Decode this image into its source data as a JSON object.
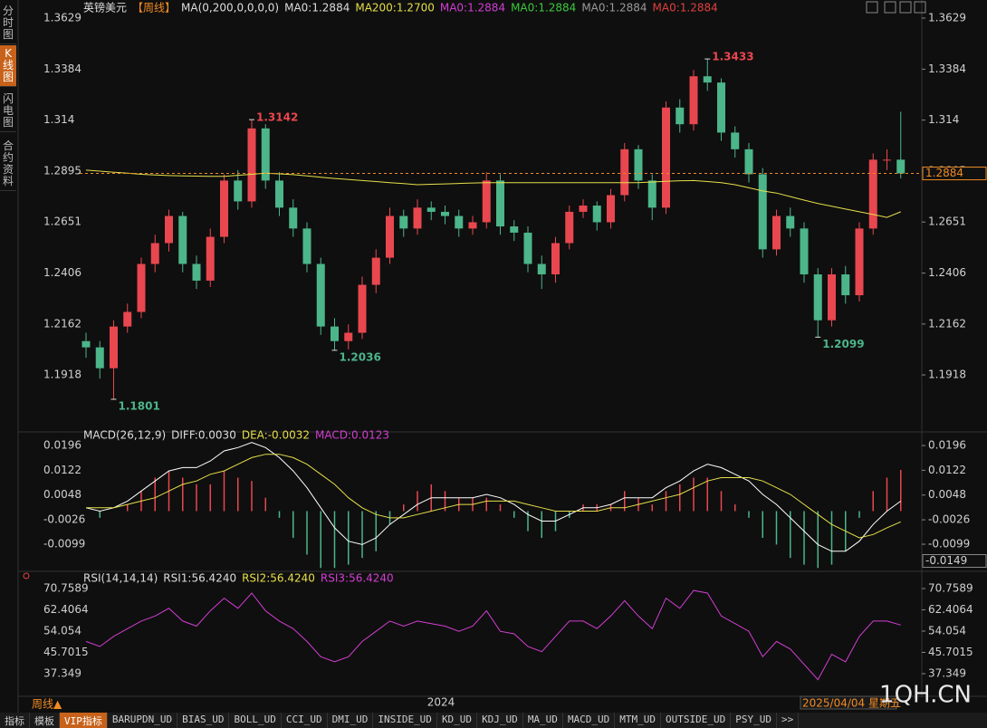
{
  "sidebar": [
    "分时图",
    "K线图",
    "闪电图",
    "合约资料"
  ],
  "footer": {
    "period": "周线▲",
    "year": "2024",
    "date": "2025/04/04 星期五",
    "watermark": "1QH.CN"
  },
  "tabs": [
    "指标",
    "模板",
    "VIP指标",
    "BARUPDN_UD",
    "BIAS_UD",
    "BOLL_UD",
    "CCI_UD",
    "DMI_UD",
    "INSIDE_UD",
    "KD_UD",
    "KDJ_UD",
    "MA_UD",
    "MACD_UD",
    "MTM_UD",
    "OUTSIDE_UD",
    "PSY_UD",
    ">>"
  ],
  "chart_data": [
    {
      "type": "candlestick",
      "up_color": "#e8474f",
      "down_color": "#4cb58a",
      "legend": [
        {
          "text": "英镑美元",
          "color": "#dddddd"
        },
        {
          "text": "【周线】",
          "color": "#f08a24"
        },
        {
          "text": "MA(0,200,0,0,0,0)",
          "color": "#dddddd"
        },
        {
          "text": "MA0:1.2884",
          "color": "#dddddd"
        },
        {
          "text": "MA200:1.2700",
          "color": "#e6df4a"
        },
        {
          "text": "MA0:1.2884",
          "color": "#d23ed2"
        },
        {
          "text": "MA0:1.2884",
          "color": "#3cc93c"
        },
        {
          "text": "MA0:1.2884",
          "color": "#999999"
        },
        {
          "text": "MA0:1.2884",
          "color": "#e04040"
        }
      ],
      "ylim": [
        1.1675,
        1.3694
      ],
      "yticks": [
        1.1918,
        1.2162,
        1.2406,
        1.2651,
        1.2895,
        1.314,
        1.3384,
        1.3629
      ],
      "candles": [
        [
          1.208,
          1.212,
          1.2,
          1.205
        ],
        [
          1.205,
          1.208,
          1.19,
          1.195
        ],
        [
          1.195,
          1.218,
          1.1801,
          1.215
        ],
        [
          1.215,
          1.226,
          1.212,
          1.222
        ],
        [
          1.222,
          1.248,
          1.219,
          1.245
        ],
        [
          1.245,
          1.259,
          1.241,
          1.255
        ],
        [
          1.255,
          1.271,
          1.251,
          1.268
        ],
        [
          1.268,
          1.27,
          1.241,
          1.245
        ],
        [
          1.245,
          1.249,
          1.233,
          1.237
        ],
        [
          1.237,
          1.262,
          1.234,
          1.258
        ],
        [
          1.258,
          1.288,
          1.255,
          1.285
        ],
        [
          1.285,
          1.29,
          1.271,
          1.275
        ],
        [
          1.275,
          1.3142,
          1.272,
          1.31
        ],
        [
          1.31,
          1.312,
          1.281,
          1.285
        ],
        [
          1.285,
          1.289,
          1.268,
          1.272
        ],
        [
          1.272,
          1.276,
          1.258,
          1.262
        ],
        [
          1.262,
          1.265,
          1.241,
          1.245
        ],
        [
          1.245,
          1.248,
          1.211,
          1.215
        ],
        [
          1.215,
          1.219,
          1.2036,
          1.208
        ],
        [
          1.208,
          1.216,
          1.204,
          1.212
        ],
        [
          1.212,
          1.239,
          1.209,
          1.235
        ],
        [
          1.235,
          1.252,
          1.231,
          1.248
        ],
        [
          1.248,
          1.272,
          1.245,
          1.268
        ],
        [
          1.268,
          1.271,
          1.258,
          1.262
        ],
        [
          1.262,
          1.276,
          1.259,
          1.272
        ],
        [
          1.272,
          1.275,
          1.266,
          1.27
        ],
        [
          1.27,
          1.273,
          1.264,
          1.268
        ],
        [
          1.268,
          1.271,
          1.258,
          1.262
        ],
        [
          1.262,
          1.268,
          1.259,
          1.265
        ],
        [
          1.265,
          1.289,
          1.262,
          1.285
        ],
        [
          1.285,
          1.288,
          1.259,
          1.263
        ],
        [
          1.263,
          1.266,
          1.256,
          1.26
        ],
        [
          1.26,
          1.263,
          1.241,
          1.245
        ],
        [
          1.245,
          1.249,
          1.233,
          1.24
        ],
        [
          1.24,
          1.258,
          1.236,
          1.255
        ],
        [
          1.255,
          1.273,
          1.252,
          1.27
        ],
        [
          1.27,
          1.276,
          1.267,
          1.273
        ],
        [
          1.273,
          1.275,
          1.261,
          1.265
        ],
        [
          1.265,
          1.281,
          1.262,
          1.278
        ],
        [
          1.278,
          1.303,
          1.275,
          1.3
        ],
        [
          1.3,
          1.302,
          1.281,
          1.285
        ],
        [
          1.285,
          1.288,
          1.266,
          1.272
        ],
        [
          1.272,
          1.323,
          1.269,
          1.32
        ],
        [
          1.32,
          1.324,
          1.308,
          1.312
        ],
        [
          1.312,
          1.338,
          1.309,
          1.335
        ],
        [
          1.335,
          1.3433,
          1.328,
          1.332
        ],
        [
          1.332,
          1.334,
          1.304,
          1.308
        ],
        [
          1.308,
          1.311,
          1.296,
          1.3
        ],
        [
          1.3,
          1.303,
          1.284,
          1.288
        ],
        [
          1.288,
          1.291,
          1.248,
          1.252
        ],
        [
          1.252,
          1.271,
          1.249,
          1.268
        ],
        [
          1.268,
          1.272,
          1.258,
          1.262
        ],
        [
          1.262,
          1.265,
          1.236,
          1.24
        ],
        [
          1.24,
          1.243,
          1.2099,
          1.218
        ],
        [
          1.218,
          1.243,
          1.215,
          1.24
        ],
        [
          1.24,
          1.244,
          1.226,
          1.23
        ],
        [
          1.23,
          1.265,
          1.227,
          1.262
        ],
        [
          1.262,
          1.298,
          1.259,
          1.295
        ],
        [
          1.295,
          1.3,
          1.29,
          1.295
        ],
        [
          1.295,
          1.318,
          1.286,
          1.2884
        ]
      ],
      "series": [
        {
          "color": "#e6df4a",
          "values": [
            1.29,
            1.2895,
            1.289,
            1.2885,
            1.288,
            1.2877,
            1.2874,
            1.2872,
            1.2871,
            1.287,
            1.287,
            1.2875,
            1.288,
            1.2885,
            1.2882,
            1.2878,
            1.2872,
            1.2866,
            1.286,
            1.2855,
            1.285,
            1.2845,
            1.284,
            1.2835,
            1.283,
            1.2832,
            1.2834,
            1.2836,
            1.2838,
            1.284,
            1.284,
            1.284,
            1.284,
            1.284,
            1.284,
            1.284,
            1.284,
            1.284,
            1.284,
            1.284,
            1.284,
            1.2843,
            1.2846,
            1.2849,
            1.285,
            1.2845,
            1.284,
            1.283,
            1.2815,
            1.28,
            1.279,
            1.2773,
            1.2756,
            1.274,
            1.2727,
            1.2713,
            1.27,
            1.2687,
            1.2673,
            1.27
          ]
        }
      ]
    },
    {
      "type": "macd",
      "pos_color": "#e8474f",
      "neg_color": "#4cb58a",
      "cursor_value": -0.0149,
      "legend": [
        {
          "text": "MACD(26,12,9)",
          "color": "#dddddd"
        },
        {
          "text": "DIFF:0.0030",
          "color": "#dddddd"
        },
        {
          "text": "DEA:-0.0032",
          "color": "#e6df4a"
        },
        {
          "text": "MACD:0.0123",
          "color": "#d23ed2"
        }
      ],
      "ylim": [
        -0.0172,
        0.0207
      ],
      "yticks": [
        -0.0099,
        -0.0026,
        0.0048,
        0.0122,
        0.0196
      ],
      "histogram": [
        0,
        -0.002,
        0,
        0.002,
        0.006,
        0.01,
        0.012,
        0.01,
        0.008,
        0.008,
        0.012,
        0.01,
        0.009,
        0.004,
        -0.002,
        -0.008,
        -0.013,
        -0.017,
        -0.017,
        -0.016,
        -0.014,
        -0.012,
        -0.004,
        0.002,
        0.006,
        0.008,
        0.006,
        0.004,
        0.004,
        0.004,
        0.002,
        -0.002,
        -0.006,
        -0.008,
        -0.006,
        -0.002,
        0.002,
        0.002,
        0.002,
        0.006,
        0.004,
        0.002,
        0.006,
        0.008,
        0.01,
        0.01,
        0.006,
        0.002,
        -0.002,
        -0.008,
        -0.01,
        -0.014,
        -0.016,
        -0.017,
        -0.016,
        -0.012,
        -0.002,
        0.006,
        0.01,
        0.0123
      ],
      "series": [
        {
          "color": "#ffffff",
          "values": [
            0.001,
            0,
            0.001,
            0.003,
            0.006,
            0.009,
            0.012,
            0.013,
            0.013,
            0.015,
            0.018,
            0.019,
            0.0205,
            0.019,
            0.016,
            0.012,
            0.007,
            0.001,
            -0.005,
            -0.009,
            -0.01,
            -0.008,
            -0.004,
            -0.001,
            0.002,
            0.004,
            0.004,
            0.004,
            0.004,
            0.005,
            0.004,
            0.002,
            -0.001,
            -0.003,
            -0.003,
            -0.001,
            0.001,
            0.001,
            0.002,
            0.004,
            0.004,
            0.004,
            0.007,
            0.009,
            0.012,
            0.014,
            0.013,
            0.011,
            0.009,
            0.005,
            0.002,
            -0.002,
            -0.006,
            -0.01,
            -0.012,
            -0.012,
            -0.009,
            -0.004,
            0,
            0.003
          ]
        },
        {
          "color": "#e6df4a",
          "values": [
            0.001,
            0.001,
            0.001,
            0.002,
            0.003,
            0.004,
            0.006,
            0.008,
            0.009,
            0.011,
            0.012,
            0.014,
            0.016,
            0.017,
            0.017,
            0.016,
            0.014,
            0.011,
            0.008,
            0.004,
            0.001,
            -0.001,
            -0.002,
            -0.002,
            -0.001,
            0,
            0.001,
            0.002,
            0.002,
            0.003,
            0.003,
            0.003,
            0.002,
            0.001,
            0,
            0,
            0,
            0,
            0.001,
            0.001,
            0.002,
            0.003,
            0.004,
            0.005,
            0.007,
            0.009,
            0.01,
            0.01,
            0.01,
            0.009,
            0.007,
            0.005,
            0.002,
            -0.001,
            -0.004,
            -0.006,
            -0.008,
            -0.007,
            -0.005,
            -0.0032
          ]
        }
      ]
    },
    {
      "type": "line",
      "legend": [
        {
          "text": "RSI(14,14,14)",
          "color": "#dddddd"
        },
        {
          "text": "RSI1:56.4240",
          "color": "#dddddd"
        },
        {
          "text": "RSI2:56.4240",
          "color": "#e6df4a"
        },
        {
          "text": "RSI3:56.4240",
          "color": "#d23ed2"
        }
      ],
      "ylim": [
        29.88,
        72.54
      ],
      "yticks": [
        37.349,
        45.7015,
        54.054,
        62.4064,
        70.7589
      ],
      "series": [
        {
          "color": "#d23ed2",
          "values": [
            50,
            48,
            52,
            55,
            58,
            60,
            63,
            58,
            56,
            62,
            67,
            63,
            69,
            62,
            58,
            55,
            50,
            44,
            42,
            44,
            50,
            54,
            58,
            56,
            58,
            57,
            56,
            54,
            56,
            62,
            54,
            53,
            48,
            46,
            52,
            58,
            58,
            55,
            60,
            66,
            60,
            55,
            67,
            63,
            70,
            69,
            60,
            57,
            54,
            44,
            50,
            47,
            41,
            35,
            45,
            42,
            52,
            58,
            58,
            56.424
          ]
        }
      ]
    }
  ]
}
